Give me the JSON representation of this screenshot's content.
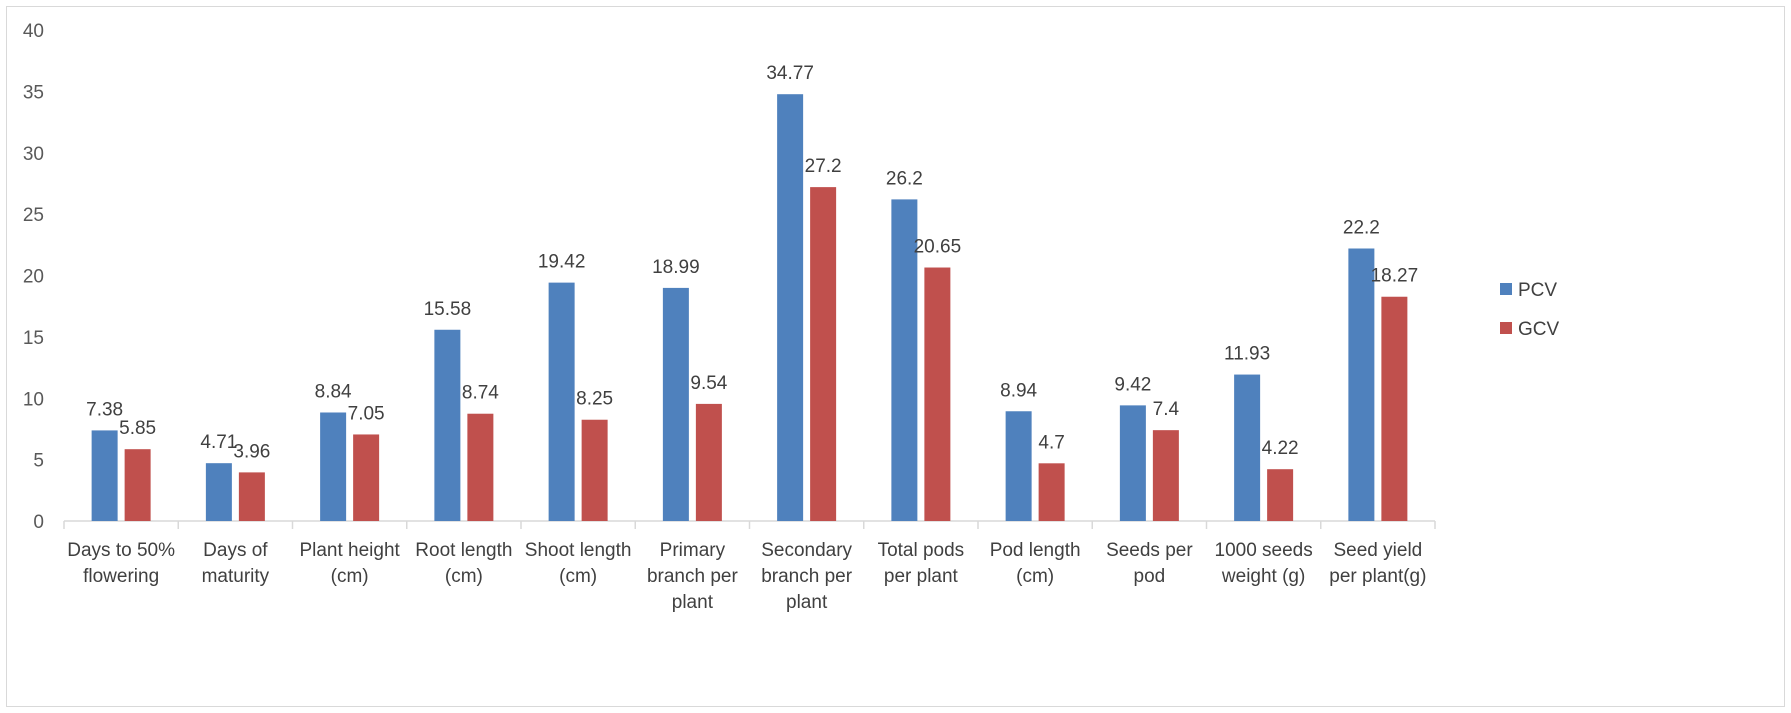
{
  "chart_data": {
    "type": "bar",
    "categories": [
      [
        "Days to 50%",
        "flowering"
      ],
      [
        "Days of",
        "maturity"
      ],
      [
        "Plant height",
        "(cm)"
      ],
      [
        "Root length",
        "(cm)"
      ],
      [
        "Shoot length",
        "(cm)"
      ],
      [
        "Primary",
        "branch per",
        "plant"
      ],
      [
        "Secondary",
        "branch per",
        "plant"
      ],
      [
        "Total pods",
        "per plant"
      ],
      [
        "Pod length",
        "(cm)"
      ],
      [
        "Seeds per",
        "pod"
      ],
      [
        "1000 seeds",
        "weight (g)"
      ],
      [
        "Seed yield",
        "per plant(g)"
      ]
    ],
    "series": [
      {
        "name": "PCV",
        "color": "#4f81bd",
        "values": [
          7.38,
          4.71,
          8.84,
          15.58,
          19.42,
          18.99,
          34.77,
          26.2,
          8.94,
          9.42,
          11.93,
          22.2
        ]
      },
      {
        "name": "GCV",
        "color": "#c0504d",
        "values": [
          5.85,
          3.96,
          7.05,
          8.74,
          8.25,
          9.54,
          27.2,
          20.65,
          4.7,
          7.4,
          4.22,
          18.27
        ]
      }
    ],
    "ylim": [
      0,
      40
    ],
    "yticks": [
      0,
      5,
      10,
      15,
      20,
      25,
      30,
      35,
      40
    ],
    "grid": false,
    "legend": "right"
  }
}
